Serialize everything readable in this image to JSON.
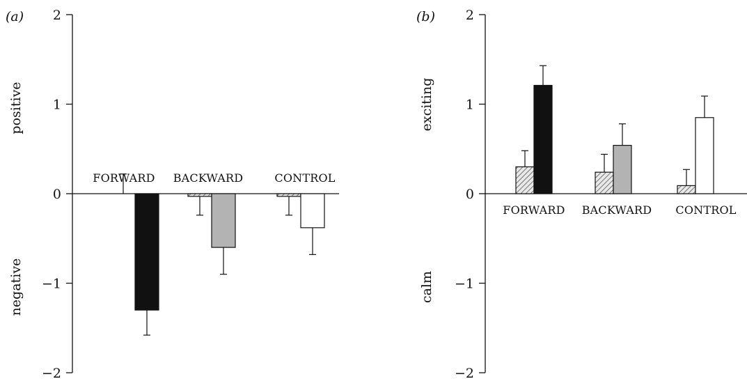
{
  "figure": {
    "panels": [
      "(a)",
      "(b)"
    ]
  },
  "chart_data": [
    {
      "type": "bar",
      "panel_label": "(a)",
      "categories": [
        "FORWARD",
        "BACKWARD",
        "CONTROL"
      ],
      "ylim": [
        -2,
        2
      ],
      "yticks": [
        -2,
        -1,
        0,
        1,
        2
      ],
      "ytick_labels": [
        "−2",
        "−1",
        "0",
        "1",
        "2"
      ],
      "ylabel_top": "positive",
      "ylabel_bottom": "negative",
      "category_label_position": "above-zero-line",
      "grid": false,
      "groups": [
        {
          "category": "FORWARD",
          "bars": [
            {
              "style": "hatched",
              "value": 0.0,
              "error": 0.22
            },
            {
              "style": "black",
              "value": -1.3,
              "error": 0.28
            }
          ]
        },
        {
          "category": "BACKWARD",
          "bars": [
            {
              "style": "hatched",
              "value": -0.03,
              "error": 0.21
            },
            {
              "style": "grey",
              "value": -0.6,
              "error": 0.3
            }
          ]
        },
        {
          "category": "CONTROL",
          "bars": [
            {
              "style": "hatched",
              "value": -0.03,
              "error": 0.21
            },
            {
              "style": "white",
              "value": -0.38,
              "error": 0.3
            }
          ]
        }
      ]
    },
    {
      "type": "bar",
      "panel_label": "(b)",
      "categories": [
        "FORWARD",
        "BACKWARD",
        "CONTROL"
      ],
      "ylim": [
        -2,
        2
      ],
      "yticks": [
        -2,
        -1,
        0,
        1,
        2
      ],
      "ytick_labels": [
        "−2",
        "−1",
        "0",
        "1",
        "2"
      ],
      "ylabel_top": "exciting",
      "ylabel_bottom": "calm",
      "category_label_position": "below-zero-line",
      "grid": false,
      "groups": [
        {
          "category": "FORWARD",
          "bars": [
            {
              "style": "hatched",
              "value": 0.3,
              "error": 0.18
            },
            {
              "style": "black",
              "value": 1.21,
              "error": 0.22
            }
          ]
        },
        {
          "category": "BACKWARD",
          "bars": [
            {
              "style": "hatched",
              "value": 0.24,
              "error": 0.2
            },
            {
              "style": "grey",
              "value": 0.54,
              "error": 0.24
            }
          ]
        },
        {
          "category": "CONTROL",
          "bars": [
            {
              "style": "hatched",
              "value": 0.09,
              "error": 0.18
            },
            {
              "style": "white",
              "value": 0.85,
              "error": 0.24
            }
          ]
        }
      ]
    }
  ],
  "colors": {
    "black": "#111111",
    "grey": "#b3b3b3",
    "white": "#ffffff",
    "hatch": "#555555",
    "hatch_bg": "#e9e9e9",
    "axis": "#111111"
  }
}
